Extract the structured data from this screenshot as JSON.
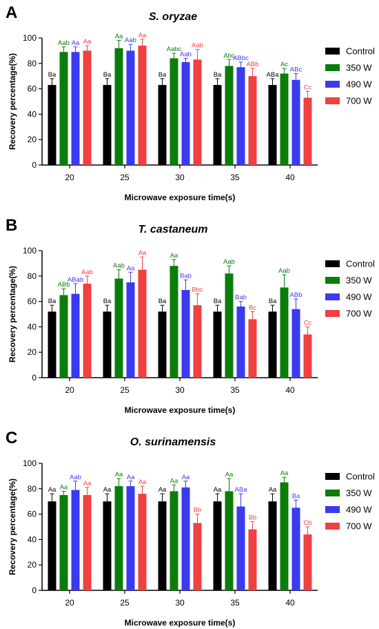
{
  "chart_data": [
    {
      "type": "bar",
      "panel": "A",
      "title": "S. oryzae",
      "xlabel": "Microwave exposure time(s)",
      "ylabel": "Recovery percentage(%)",
      "ylim": [
        0,
        100
      ],
      "yticks": [
        0,
        20,
        40,
        60,
        80,
        100
      ],
      "categories": [
        "20",
        "25",
        "30",
        "35",
        "40"
      ],
      "legend_position": "right",
      "grid": false,
      "series": [
        {
          "name": "Control",
          "color": "#000000",
          "values": [
            63,
            63,
            63,
            63,
            63
          ],
          "errors": [
            5,
            5,
            5,
            5,
            5
          ],
          "labels": [
            "Ba",
            "Ba",
            "Ba",
            "Ba",
            "ABa"
          ]
        },
        {
          "name": "350 W",
          "color": "#0a7d0a",
          "values": [
            89,
            92,
            84,
            78,
            72
          ],
          "errors": [
            4,
            6,
            4,
            5,
            4
          ],
          "labels": [
            "Aab",
            "Aa",
            "Aabc",
            "Abc",
            "Ac"
          ]
        },
        {
          "name": "490 W",
          "color": "#3a3af0",
          "values": [
            89,
            90,
            81,
            77,
            67
          ],
          "errors": [
            4,
            5,
            3,
            4,
            5
          ],
          "labels": [
            "Aa",
            "Aab",
            "Aab",
            "ABbc",
            "ABc"
          ]
        },
        {
          "name": "700 W",
          "color": "#f04040",
          "values": [
            90,
            94,
            83,
            70,
            53
          ],
          "errors": [
            4,
            5,
            8,
            6,
            5
          ],
          "labels": [
            "Aa",
            "Aa",
            "Aab",
            "ABb",
            "Cc"
          ]
        }
      ]
    },
    {
      "type": "bar",
      "panel": "B",
      "title": "T. castaneum",
      "xlabel": "Microwave exposure time(s)",
      "ylabel": "Recovery percentage(%)",
      "ylim": [
        0,
        100
      ],
      "yticks": [
        0,
        20,
        40,
        60,
        80,
        100
      ],
      "categories": [
        "20",
        "25",
        "30",
        "35",
        "40"
      ],
      "legend_position": "right",
      "grid": false,
      "series": [
        {
          "name": "Control",
          "color": "#000000",
          "values": [
            52,
            52,
            52,
            52,
            52
          ],
          "errors": [
            5,
            5,
            5,
            5,
            5
          ],
          "labels": [
            "Ba",
            "Ba",
            "Ba",
            "Ba",
            "Ba"
          ]
        },
        {
          "name": "350 W",
          "color": "#0a7d0a",
          "values": [
            65,
            78,
            88,
            82,
            71
          ],
          "errors": [
            5,
            7,
            5,
            6,
            10
          ],
          "labels": [
            "ABb",
            "Aab",
            "Aa",
            "Aab",
            "Aab"
          ]
        },
        {
          "name": "490 W",
          "color": "#3a3af0",
          "values": [
            66,
            75,
            69,
            56,
            54
          ],
          "errors": [
            8,
            8,
            8,
            4,
            8
          ],
          "labels": [
            "ABab",
            "Aa",
            "Bab",
            "Bab",
            "ABb"
          ]
        },
        {
          "name": "700 W",
          "color": "#f04040",
          "values": [
            74,
            85,
            57,
            46,
            34
          ],
          "errors": [
            6,
            10,
            9,
            6,
            6
          ],
          "labels": [
            "Aab",
            "Aa",
            "Bbc",
            "Bc",
            "Cc"
          ]
        }
      ]
    },
    {
      "type": "bar",
      "panel": "C",
      "title": "O. surinamensis",
      "xlabel": "Microwave exposure time(s)",
      "ylabel": "Recovery percentage(%)",
      "ylim": [
        0,
        100
      ],
      "yticks": [
        0,
        20,
        40,
        60,
        80,
        100
      ],
      "categories": [
        "20",
        "25",
        "30",
        "35",
        "40"
      ],
      "legend_position": "right",
      "grid": false,
      "series": [
        {
          "name": "Control",
          "color": "#000000",
          "values": [
            70,
            70,
            70,
            70,
            70
          ],
          "errors": [
            6,
            6,
            6,
            6,
            6
          ],
          "labels": [
            "Aa",
            "Aa",
            "Aa",
            "Aa",
            "Aa"
          ]
        },
        {
          "name": "350 W",
          "color": "#0a7d0a",
          "values": [
            75,
            82,
            78,
            78,
            85
          ],
          "errors": [
            3,
            6,
            5,
            10,
            4
          ],
          "labels": [
            "Aa",
            "Aa",
            "Aa",
            "Aa",
            "Aa"
          ]
        },
        {
          "name": "490 W",
          "color": "#3a3af0",
          "values": [
            79,
            82,
            81,
            66,
            65
          ],
          "errors": [
            7,
            4,
            5,
            10,
            6
          ],
          "labels": [
            "Aab",
            "Aa",
            "Aa",
            "ABa",
            "Ba"
          ]
        },
        {
          "name": "700 W",
          "color": "#f04040",
          "values": [
            75,
            76,
            53,
            48,
            44
          ],
          "errors": [
            6,
            6,
            7,
            6,
            6
          ],
          "labels": [
            "Aa",
            "Aa",
            "Bb",
            "Bb",
            "Cb"
          ]
        }
      ]
    }
  ]
}
